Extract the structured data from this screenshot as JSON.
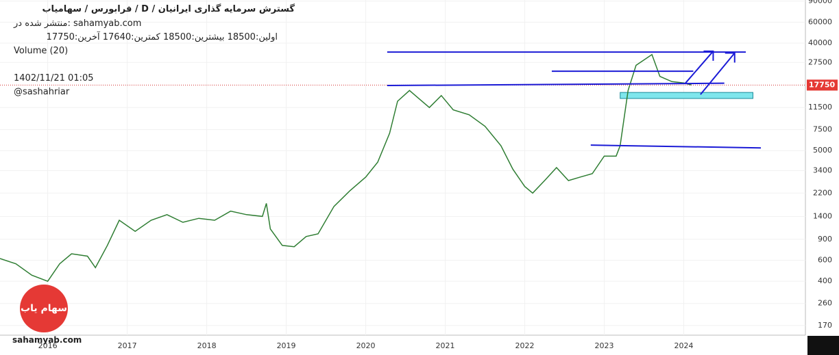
{
  "chart_data": {
    "type": "line",
    "title": "گسترش سرمایه گذاری ایرانیان /  D  /  فرابورس / سهامیاب",
    "subtitle": "منتشر شده در: sahamyab.com",
    "ohlc_text": "اولین:18500  بیشترین:18500  کمترین:17640  آخرین:17750",
    "volume_label": "Volume (20)",
    "timestamp": "1402/11/21 01:05",
    "author": "@sashahriar",
    "watermark": "sahamyab.com",
    "logo_text": "سهام یاب",
    "log_scale": true,
    "grid": true,
    "color": "#2e7d32",
    "x": [
      2015.4,
      2015.6,
      2015.8,
      2016.0,
      2016.15,
      2016.3,
      2016.5,
      2016.6,
      2016.75,
      2016.9,
      2017.1,
      2017.3,
      2017.5,
      2017.7,
      2017.9,
      2018.1,
      2018.3,
      2018.5,
      2018.7,
      2018.75,
      2018.8,
      2018.95,
      2019.1,
      2019.25,
      2019.4,
      2019.6,
      2019.8,
      2020.0,
      2020.15,
      2020.3,
      2020.4,
      2020.55,
      2020.65,
      2020.8,
      2020.95,
      2021.1,
      2021.3,
      2021.5,
      2021.7,
      2021.85,
      2022.0,
      2022.1,
      2022.25,
      2022.4,
      2022.55,
      2022.7,
      2022.85,
      2023.0,
      2023.15,
      2023.2,
      2023.3,
      2023.4,
      2023.6,
      2023.7,
      2023.85,
      2024.0,
      2024.1
    ],
    "values": [
      620,
      560,
      450,
      400,
      560,
      680,
      650,
      520,
      800,
      1300,
      1050,
      1300,
      1450,
      1250,
      1350,
      1300,
      1550,
      1450,
      1400,
      1800,
      1100,
      800,
      780,
      950,
      1000,
      1700,
      2300,
      3000,
      4000,
      7000,
      13000,
      16000,
      14000,
      11500,
      14500,
      11000,
      10000,
      8000,
      5500,
      3500,
      2500,
      2200,
      2800,
      3600,
      2800,
      3000,
      3200,
      4500,
      4500,
      5500,
      16000,
      26000,
      32000,
      21000,
      19000,
      18500,
      17750
    ],
    "last_price": 17750,
    "xlim": [
      2015.4,
      2025.53
    ],
    "xticks": [
      2016,
      2017,
      2018,
      2019,
      2020,
      2021,
      2022,
      2023,
      2024
    ],
    "ylim": [
      141,
      92000
    ],
    "yticks": [
      170,
      260,
      400,
      600,
      900,
      1400,
      2200,
      3400,
      5000,
      7500,
      11500,
      27500,
      40000,
      60000,
      90000
    ],
    "trend_lines": [
      {
        "x": [
          2020.27,
          2024.78
        ],
        "y": [
          33600,
          33600
        ]
      },
      {
        "x": [
          2022.34,
          2024.12
        ],
        "y": [
          23200,
          23200
        ]
      },
      {
        "x": [
          2020.27,
          2024.51
        ],
        "y": [
          17600,
          18400
        ]
      },
      {
        "x": [
          2022.83,
          2024.97
        ],
        "y": [
          5560,
          5270
        ]
      }
    ],
    "arrows": [
      {
        "x": [
          2024.02,
          2024.37
        ],
        "y": [
          18400,
          34200
        ]
      },
      {
        "x": [
          2024.21,
          2024.64
        ],
        "y": [
          14800,
          33000
        ]
      }
    ],
    "zone": {
      "x": [
        2023.2,
        2024.87
      ],
      "y": [
        15400,
        13700
      ]
    }
  }
}
